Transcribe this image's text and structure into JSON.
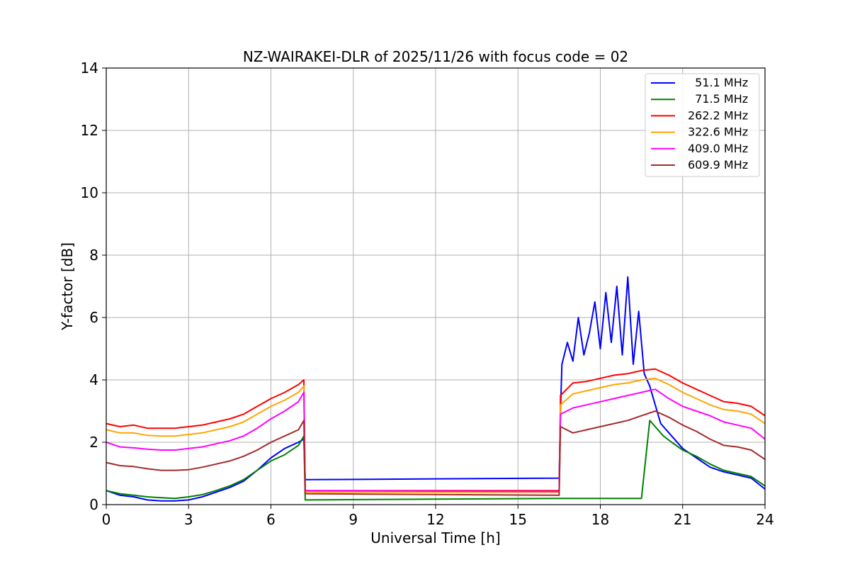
{
  "chart_data": {
    "type": "line",
    "title": "NZ-WAIRAKEI-DLR of 2025/11/26 with focus code = 02",
    "xlabel": "Universal Time [h]",
    "ylabel": "Y-factor [dB]",
    "xlim": [
      0,
      24
    ],
    "ylim": [
      0,
      14
    ],
    "xticks": [
      0,
      3,
      6,
      9,
      12,
      15,
      18,
      21,
      24
    ],
    "yticks": [
      0,
      2,
      4,
      6,
      8,
      10,
      12,
      14
    ],
    "grid": true,
    "legend_position": "top-right",
    "series": [
      {
        "name": "  51.1 MHz",
        "color": "#0000ff",
        "x": [
          0,
          0.5,
          1,
          1.5,
          2,
          2.5,
          3,
          3.5,
          4,
          4.5,
          5,
          5.5,
          6,
          6.5,
          7,
          7.2,
          7.25,
          16.5,
          16.55,
          16.6,
          16.8,
          17.0,
          17.2,
          17.4,
          17.6,
          17.8,
          18.0,
          18.2,
          18.4,
          18.6,
          18.8,
          19.0,
          19.2,
          19.4,
          19.6,
          19.8,
          20.0,
          20.2,
          20.5,
          21,
          21.5,
          22,
          22.5,
          23,
          23.5,
          24
        ],
        "y": [
          0.45,
          0.3,
          0.25,
          0.15,
          0.12,
          0.12,
          0.15,
          0.25,
          0.4,
          0.55,
          0.75,
          1.1,
          1.5,
          1.8,
          2.0,
          2.1,
          0.8,
          0.85,
          3.0,
          4.5,
          5.2,
          4.6,
          6.0,
          4.8,
          5.5,
          6.5,
          5.0,
          6.8,
          5.2,
          7.0,
          4.8,
          7.3,
          4.5,
          6.2,
          4.2,
          3.8,
          3.2,
          2.6,
          2.3,
          1.8,
          1.5,
          1.2,
          1.05,
          0.95,
          0.85,
          0.5
        ]
      },
      {
        "name": "  71.5 MHz",
        "color": "#008000",
        "x": [
          0,
          0.5,
          1,
          1.5,
          2,
          2.5,
          3,
          3.5,
          4,
          4.5,
          5,
          5.5,
          6,
          6.5,
          7,
          7.2,
          7.25,
          16.5,
          16.55,
          19.5,
          19.8,
          20.0,
          20.3,
          20.6,
          21,
          21.5,
          22,
          22.5,
          23,
          23.5,
          24
        ],
        "y": [
          0.45,
          0.35,
          0.3,
          0.25,
          0.22,
          0.2,
          0.25,
          0.32,
          0.45,
          0.6,
          0.8,
          1.1,
          1.4,
          1.6,
          1.9,
          2.2,
          0.15,
          0.2,
          0.2,
          0.2,
          2.7,
          2.5,
          2.2,
          2.0,
          1.75,
          1.55,
          1.3,
          1.1,
          1.0,
          0.9,
          0.6
        ]
      },
      {
        "name": "262.2 MHz",
        "color": "#ff0000",
        "x": [
          0,
          0.5,
          1,
          1.5,
          2,
          2.5,
          3,
          3.5,
          4,
          4.5,
          5,
          5.5,
          6,
          6.5,
          7,
          7.2,
          7.25,
          16.5,
          16.55,
          17,
          17.5,
          18,
          18.5,
          19,
          19.5,
          20,
          20.5,
          21,
          21.5,
          22,
          22.5,
          23,
          23.5,
          24
        ],
        "y": [
          2.6,
          2.5,
          2.55,
          2.45,
          2.45,
          2.45,
          2.5,
          2.55,
          2.65,
          2.75,
          2.9,
          3.15,
          3.4,
          3.6,
          3.85,
          4.0,
          0.45,
          0.45,
          3.5,
          3.9,
          3.95,
          4.05,
          4.15,
          4.2,
          4.3,
          4.35,
          4.15,
          3.9,
          3.7,
          3.5,
          3.3,
          3.25,
          3.15,
          2.85
        ]
      },
      {
        "name": "322.6 MHz",
        "color": "#ffa500",
        "x": [
          0,
          0.5,
          1,
          1.5,
          2,
          2.5,
          3,
          3.5,
          4,
          4.5,
          5,
          5.5,
          6,
          6.5,
          7,
          7.2,
          7.25,
          16.5,
          16.55,
          17,
          17.5,
          18,
          18.5,
          19,
          19.5,
          20,
          20.5,
          21,
          21.5,
          22,
          22.5,
          23,
          23.5,
          24
        ],
        "y": [
          2.4,
          2.3,
          2.3,
          2.22,
          2.2,
          2.2,
          2.25,
          2.3,
          2.4,
          2.5,
          2.65,
          2.9,
          3.15,
          3.35,
          3.6,
          3.8,
          0.4,
          0.4,
          3.2,
          3.55,
          3.65,
          3.75,
          3.85,
          3.9,
          4.0,
          4.05,
          3.85,
          3.6,
          3.4,
          3.2,
          3.05,
          3.0,
          2.9,
          2.6
        ]
      },
      {
        "name": "409.0 MHz",
        "color": "#ff00ff",
        "x": [
          0,
          0.5,
          1,
          1.5,
          2,
          2.5,
          3,
          3.5,
          4,
          4.5,
          5,
          5.5,
          6,
          6.5,
          7,
          7.2,
          7.25,
          16.5,
          16.55,
          17,
          17.5,
          18,
          18.5,
          19,
          19.5,
          20,
          20.5,
          21,
          21.5,
          22,
          22.5,
          23,
          23.5,
          24
        ],
        "y": [
          2.0,
          1.85,
          1.82,
          1.78,
          1.75,
          1.75,
          1.8,
          1.85,
          1.95,
          2.05,
          2.2,
          2.45,
          2.75,
          3.0,
          3.3,
          3.6,
          0.45,
          0.42,
          2.9,
          3.1,
          3.2,
          3.3,
          3.4,
          3.5,
          3.6,
          3.7,
          3.4,
          3.15,
          3.0,
          2.85,
          2.65,
          2.55,
          2.45,
          2.1
        ]
      },
      {
        "name": "609.9 MHz",
        "color": "#a52a2a",
        "x": [
          0,
          0.5,
          1,
          1.5,
          2,
          2.5,
          3,
          3.5,
          4,
          4.5,
          5,
          5.5,
          6,
          6.5,
          7,
          7.2,
          7.25,
          16.5,
          16.55,
          17,
          17.5,
          18,
          18.5,
          19,
          19.5,
          20,
          20.5,
          21,
          21.5,
          22,
          22.5,
          23,
          23.5,
          24
        ],
        "y": [
          1.35,
          1.25,
          1.22,
          1.15,
          1.1,
          1.1,
          1.12,
          1.2,
          1.3,
          1.4,
          1.55,
          1.75,
          2.0,
          2.2,
          2.4,
          2.7,
          0.35,
          0.3,
          2.5,
          2.3,
          2.4,
          2.5,
          2.6,
          2.7,
          2.85,
          3.0,
          2.8,
          2.55,
          2.35,
          2.1,
          1.9,
          1.85,
          1.75,
          1.45
        ]
      }
    ]
  }
}
